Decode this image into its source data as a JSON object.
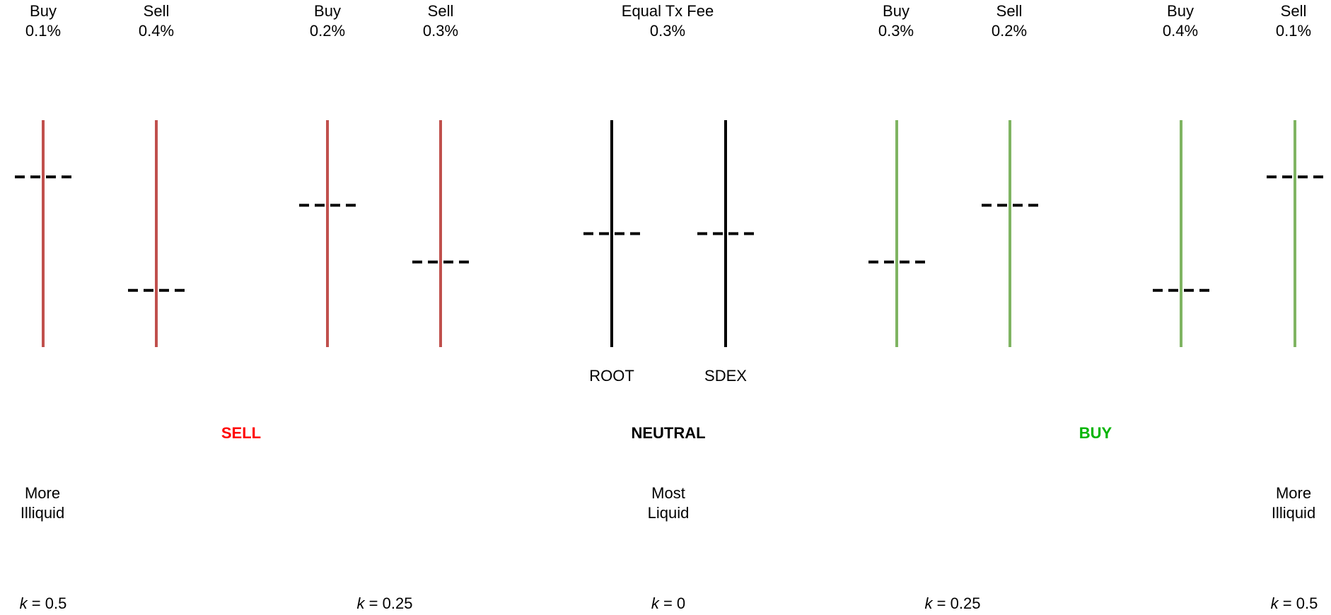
{
  "fee_headers": [
    {
      "side": "Buy",
      "fee": "0.1%"
    },
    {
      "side": "Sell",
      "fee": "0.4%"
    },
    {
      "side": "Buy",
      "fee": "0.2%"
    },
    {
      "side": "Sell",
      "fee": "0.3%"
    },
    {
      "side": "Equal Tx Fee",
      "fee": "0.3%"
    },
    {
      "side": "Buy",
      "fee": "0.3%"
    },
    {
      "side": "Sell",
      "fee": "0.2%"
    },
    {
      "side": "Buy",
      "fee": "0.4%"
    },
    {
      "side": "Sell",
      "fee": "0.1%"
    }
  ],
  "bars": [
    {
      "group": "sell",
      "color": "#c0504d",
      "marker_level": 0.75
    },
    {
      "group": "sell",
      "color": "#c0504d",
      "marker_level": 0.25
    },
    {
      "group": "sell",
      "color": "#c0504d",
      "marker_level": 0.625
    },
    {
      "group": "sell",
      "color": "#c0504d",
      "marker_level": 0.375
    },
    {
      "group": "neutral",
      "color": "#000000",
      "marker_level": 0.5,
      "label": "ROOT"
    },
    {
      "group": "neutral",
      "color": "#000000",
      "marker_level": 0.5,
      "label": "SDEX"
    },
    {
      "group": "buy",
      "color": "#7fb462",
      "marker_level": 0.375
    },
    {
      "group": "buy",
      "color": "#7fb462",
      "marker_level": 0.625
    },
    {
      "group": "buy",
      "color": "#7fb462",
      "marker_level": 0.25
    },
    {
      "group": "buy",
      "color": "#7fb462",
      "marker_level": 0.75
    }
  ],
  "states": [
    {
      "label": "SELL",
      "color": "#ff0000"
    },
    {
      "label": "NEUTRAL",
      "color": "#000000"
    },
    {
      "label": "BUY",
      "color": "#00b400"
    }
  ],
  "liquidity": [
    {
      "line1": "More",
      "line2": "Illiquid"
    },
    {
      "line1": "Most",
      "line2": "Liquid"
    },
    {
      "line1": "More",
      "line2": "Illiquid"
    }
  ],
  "k_values": [
    {
      "var": "k",
      "rest": " = 0.5"
    },
    {
      "var": "k",
      "rest": " = 0.25"
    },
    {
      "var": "k",
      "rest": " = 0"
    },
    {
      "var": "k",
      "rest": " = 0.25"
    },
    {
      "var": "k",
      "rest": " = 0.5"
    }
  ]
}
